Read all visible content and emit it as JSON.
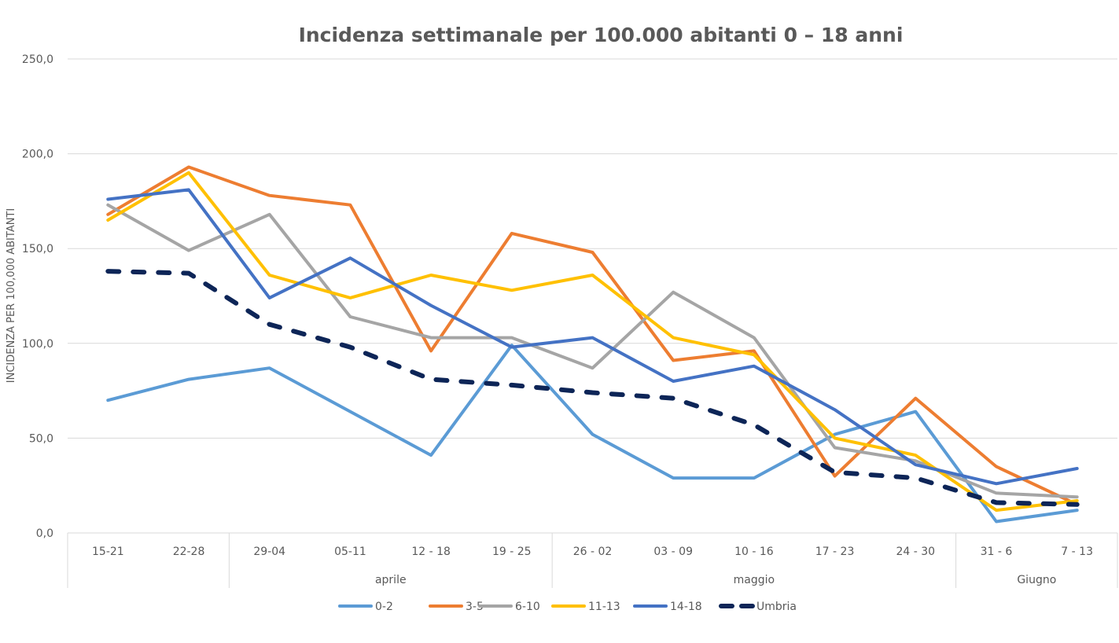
{
  "chart_data": {
    "type": "line",
    "title": "Incidenza settimanale per 100.000 abitanti 0 – 18 anni",
    "ylabel": "INCIDENZA PER 100,000 ABITANTI",
    "xlabel": "",
    "ylim": [
      0,
      250
    ],
    "yticks": [
      0,
      50,
      100,
      150,
      200,
      250
    ],
    "ytick_labels": [
      "0,0",
      "50,0",
      "100,0",
      "150,0",
      "200,0",
      "250,0"
    ],
    "grid": true,
    "legend_position": "bottom",
    "categories": [
      "15-21",
      "22-28",
      "29-04",
      "05-11",
      "12 - 18",
      "19 - 25",
      "26 - 02",
      "03 - 09",
      "10 - 16",
      "17 - 23",
      "24 - 30",
      "31 - 6",
      "7 - 13"
    ],
    "groups": [
      {
        "label": "",
        "start": 0,
        "end": 1
      },
      {
        "label": "aprile",
        "start": 2,
        "end": 5
      },
      {
        "label": "maggio",
        "start": 6,
        "end": 10
      },
      {
        "label": "Giugno",
        "start": 11,
        "end": 12
      }
    ],
    "series": [
      {
        "name": "0-2",
        "color": "#5B9BD5",
        "dashed": false,
        "values": [
          70,
          81,
          87,
          64,
          41,
          99,
          52,
          29,
          29,
          52,
          64,
          6,
          12
        ]
      },
      {
        "name": "3-5",
        "color": "#ED7D31",
        "dashed": false,
        "values": [
          168,
          193,
          178,
          173,
          96,
          158,
          148,
          91,
          96,
          30,
          71,
          35,
          15
        ]
      },
      {
        "name": "6-10",
        "color": "#A5A5A5",
        "dashed": false,
        "values": [
          173,
          149,
          168,
          114,
          103,
          103,
          87,
          127,
          103,
          45,
          38,
          21,
          19
        ]
      },
      {
        "name": "11-13",
        "color": "#FFC000",
        "dashed": false,
        "values": [
          165,
          190,
          136,
          124,
          136,
          128,
          136,
          103,
          94,
          50,
          41,
          12,
          17
        ]
      },
      {
        "name": "14-18",
        "color": "#4472C4",
        "dashed": false,
        "values": [
          176,
          181,
          124,
          145,
          120,
          98,
          103,
          80,
          88,
          65,
          36,
          26,
          34
        ]
      },
      {
        "name": "Umbria",
        "color": "#0D2557",
        "dashed": true,
        "values": [
          138,
          137,
          110,
          98,
          81,
          78,
          74,
          71,
          57,
          32,
          29,
          16,
          15
        ]
      }
    ]
  }
}
